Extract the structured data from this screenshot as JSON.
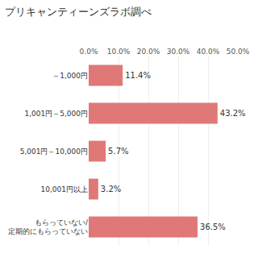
{
  "chart_data": {
    "type": "bar",
    "orientation": "horizontal",
    "title": "プリキャンティーンズラボ調べ",
    "categories": [
      "～1,000円",
      "1,001円～5,000円",
      "5,001円～10,000円",
      "10,001円以上",
      "もらっていない/定期的にもらっていない"
    ],
    "values": [
      11.4,
      43.2,
      5.7,
      3.2,
      36.5
    ],
    "value_labels": [
      "11.4%",
      "43.2%",
      "5.7%",
      "3.2%",
      "36.5%"
    ],
    "data_labels": true,
    "color": "#e07878",
    "xlim": [
      0,
      50
    ],
    "xticks": [
      {
        "value": 0,
        "label": "0.0%"
      },
      {
        "value": 10,
        "label": "10.0%"
      },
      {
        "value": 20,
        "label": "20.0%"
      },
      {
        "value": 30,
        "label": "30.0%"
      },
      {
        "value": 40,
        "label": "40.0%"
      },
      {
        "value": 50,
        "label": "50.0%"
      }
    ],
    "grid": true
  }
}
